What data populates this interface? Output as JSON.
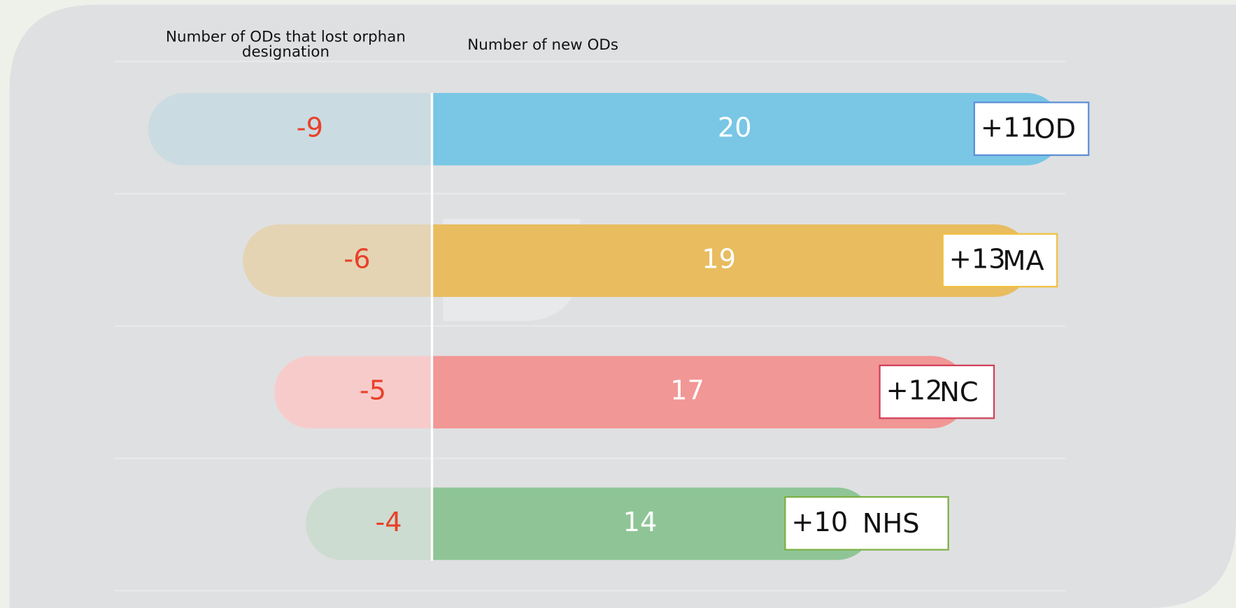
{
  "chart_data": {
    "type": "diverging-bar",
    "categories": [
      "OD",
      "MA",
      "NC",
      "NHS"
    ],
    "series": [
      {
        "name": "Number of ODs that lost orphan designation",
        "colors": [
          "#cbdbe2",
          "#e4d4b3",
          "#f8cbcb",
          "#ccdcd0"
        ],
        "label_color": "#e8412a",
        "values": [
          -9,
          -6,
          -5,
          -4
        ]
      },
      {
        "name": "Number of new ODs",
        "colors": [
          "#79c6e5",
          "#e8bc5f",
          "#f19795",
          "#8fc596"
        ],
        "label_color": "#ffffff",
        "values": [
          20,
          19,
          17,
          14
        ]
      }
    ],
    "net": {
      "values": [
        11,
        13,
        12,
        10
      ],
      "value_labels": [
        "+11",
        "+13",
        "+12",
        "+10"
      ],
      "colors": [
        "#5b8fd6",
        "#f0c040",
        "#d0405a",
        "#7cb045"
      ]
    }
  }
}
